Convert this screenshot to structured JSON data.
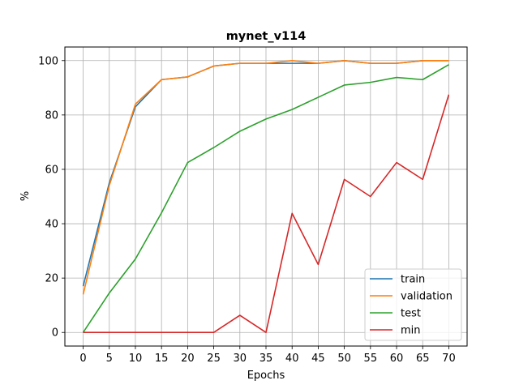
{
  "chart_data": {
    "type": "line",
    "title": "mynet_v114",
    "xlabel": "Epochs",
    "ylabel": "%",
    "x": [
      0,
      5,
      10,
      15,
      20,
      25,
      30,
      35,
      40,
      45,
      50,
      55,
      60,
      65,
      70
    ],
    "xticks": [
      "0",
      "5",
      "10",
      "15",
      "20",
      "25",
      "30",
      "35",
      "40",
      "45",
      "50",
      "55",
      "60",
      "65",
      "70"
    ],
    "yticks": [
      "0",
      "20",
      "40",
      "60",
      "80",
      "100"
    ],
    "xlim": [
      -3.5,
      73.5
    ],
    "ylim": [
      -5,
      105
    ],
    "grid": true,
    "legend_position": "lower-right",
    "series": [
      {
        "name": "train",
        "color": "#1f77b4",
        "values": [
          17,
          55,
          83,
          93,
          94,
          98,
          99,
          99,
          99,
          99,
          100,
          99,
          99,
          100,
          100
        ]
      },
      {
        "name": "validation",
        "color": "#ff7f0e",
        "values": [
          14,
          54,
          84,
          93,
          94,
          98,
          99,
          99,
          100,
          99,
          100,
          99,
          99,
          100,
          100
        ]
      },
      {
        "name": "test",
        "color": "#2ca02c",
        "values": [
          0,
          14.5,
          27,
          44,
          62.5,
          68,
          74,
          78.5,
          82,
          86.5,
          91,
          92,
          93.8,
          93,
          98.5
        ]
      },
      {
        "name": "min",
        "color": "#d62728",
        "values": [
          0,
          0,
          0,
          0,
          0,
          0,
          6.3,
          0,
          43.8,
          25,
          56.3,
          50,
          62.5,
          56.3,
          87.5
        ]
      }
    ]
  }
}
